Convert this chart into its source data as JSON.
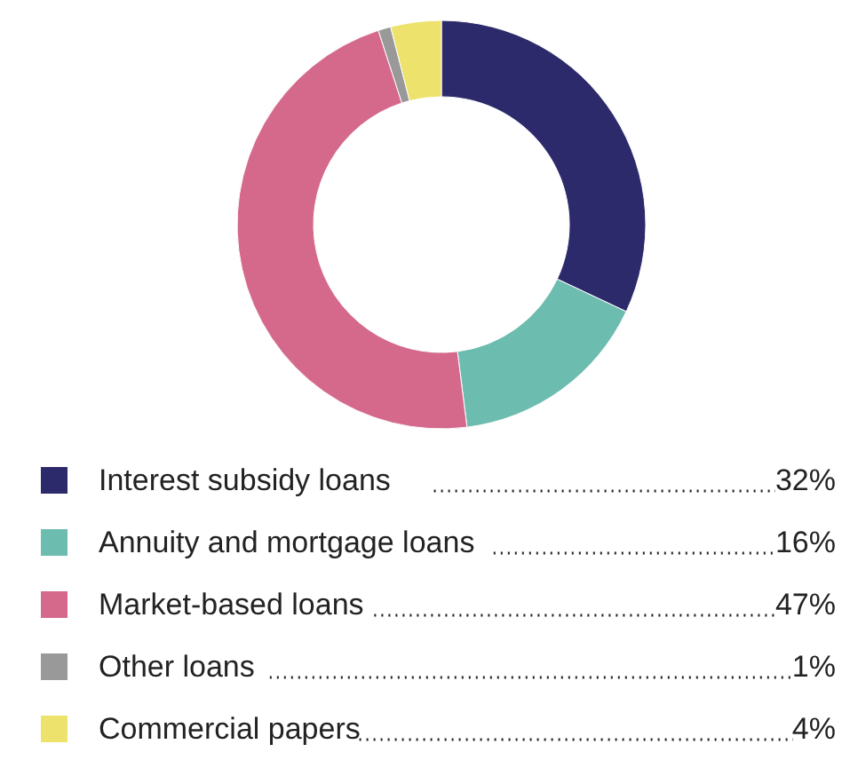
{
  "chart_data": {
    "type": "donut",
    "categories": [
      "Interest subsidy loans",
      "Annuity and mortgage loans",
      "Market-based loans",
      "Other loans",
      "Commercial papers"
    ],
    "values": [
      32,
      16,
      47,
      1,
      4
    ],
    "colors": [
      "#2d2a6b",
      "#6dbcb0",
      "#d4698c",
      "#999999",
      "#ede26b"
    ],
    "value_labels": [
      "32%",
      "16%",
      "47%",
      "1%",
      "4%"
    ],
    "legend": "bottom"
  }
}
